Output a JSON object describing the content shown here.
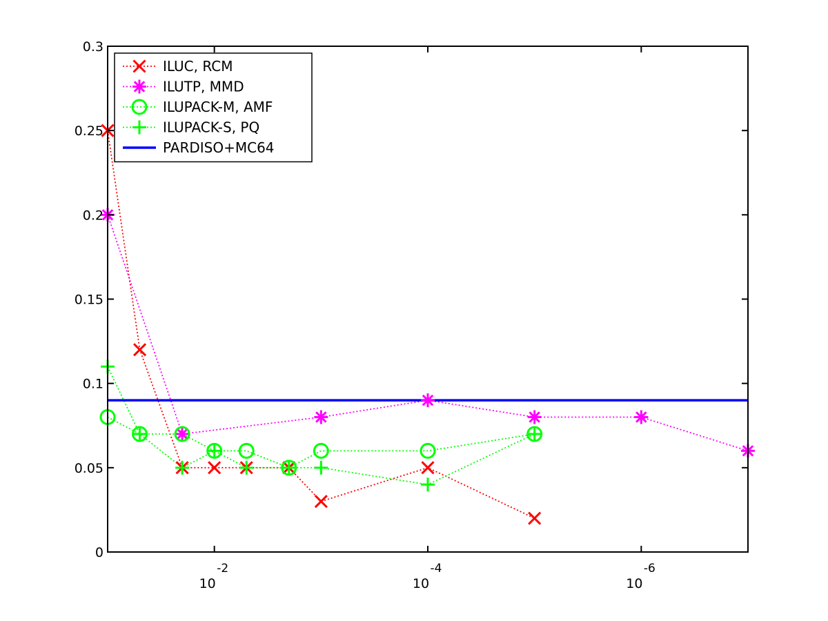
{
  "chart_data": {
    "type": "line",
    "title": "",
    "xlabel": "",
    "ylabel": "",
    "x_scale": "log",
    "x_direction": "decreasing",
    "x_tick_labels": [
      {
        "base": "10",
        "exp": "-2",
        "x": 0.01
      },
      {
        "base": "10",
        "exp": "-4",
        "x": 0.0001
      },
      {
        "base": "10",
        "exp": "-6",
        "x": 1e-06
      }
    ],
    "xlim": [
      0.1,
      1e-07
    ],
    "ylim": [
      0,
      0.3
    ],
    "y_ticks": [
      0,
      0.05,
      0.1,
      0.15,
      0.2,
      0.25,
      0.3
    ],
    "y_tick_labels": [
      "0",
      "0.05",
      "0.1",
      "0.15",
      "0.2",
      "0.25",
      "0.3"
    ],
    "grid": false,
    "legend_position": "top-left",
    "series": [
      {
        "name": "ILUC, RCM",
        "color": "#ff0000",
        "marker": "x",
        "line_style": "dotted",
        "x": [
          0.1,
          0.05,
          0.02,
          0.01,
          0.005,
          0.002,
          0.001,
          0.0001,
          1e-05
        ],
        "y": [
          0.25,
          0.12,
          0.05,
          0.05,
          0.05,
          0.05,
          0.03,
          0.05,
          0.02
        ]
      },
      {
        "name": "ILUTP, MMD",
        "color": "#ff00ff",
        "marker": "asterisk",
        "line_style": "dotted",
        "x": [
          0.1,
          0.02,
          0.001,
          0.0001,
          1e-05,
          1e-06,
          1e-07
        ],
        "y": [
          0.2,
          0.07,
          0.08,
          0.09,
          0.08,
          0.08,
          0.06
        ]
      },
      {
        "name": "ILUPACK-M, AMF",
        "color": "#00ff00",
        "marker": "circle",
        "line_style": "dotted",
        "x": [
          0.1,
          0.05,
          0.02,
          0.01,
          0.005,
          0.002,
          0.001,
          0.0001,
          1e-05
        ],
        "y": [
          0.08,
          0.07,
          0.07,
          0.06,
          0.06,
          0.05,
          0.06,
          0.06,
          0.07
        ]
      },
      {
        "name": "ILUPACK-S, PQ",
        "color": "#00ff00",
        "marker": "plus",
        "line_style": "dotted",
        "x": [
          0.1,
          0.05,
          0.02,
          0.01,
          0.005,
          0.002,
          0.001,
          0.0001,
          1e-05
        ],
        "y": [
          0.11,
          0.07,
          0.05,
          0.06,
          0.05,
          0.05,
          0.05,
          0.04,
          0.07
        ]
      },
      {
        "name": "PARDISO+MC64",
        "color": "#0000ff",
        "marker": "none",
        "line_style": "solid",
        "x": [
          0.1,
          1e-07
        ],
        "y": [
          0.09,
          0.09
        ]
      }
    ]
  }
}
